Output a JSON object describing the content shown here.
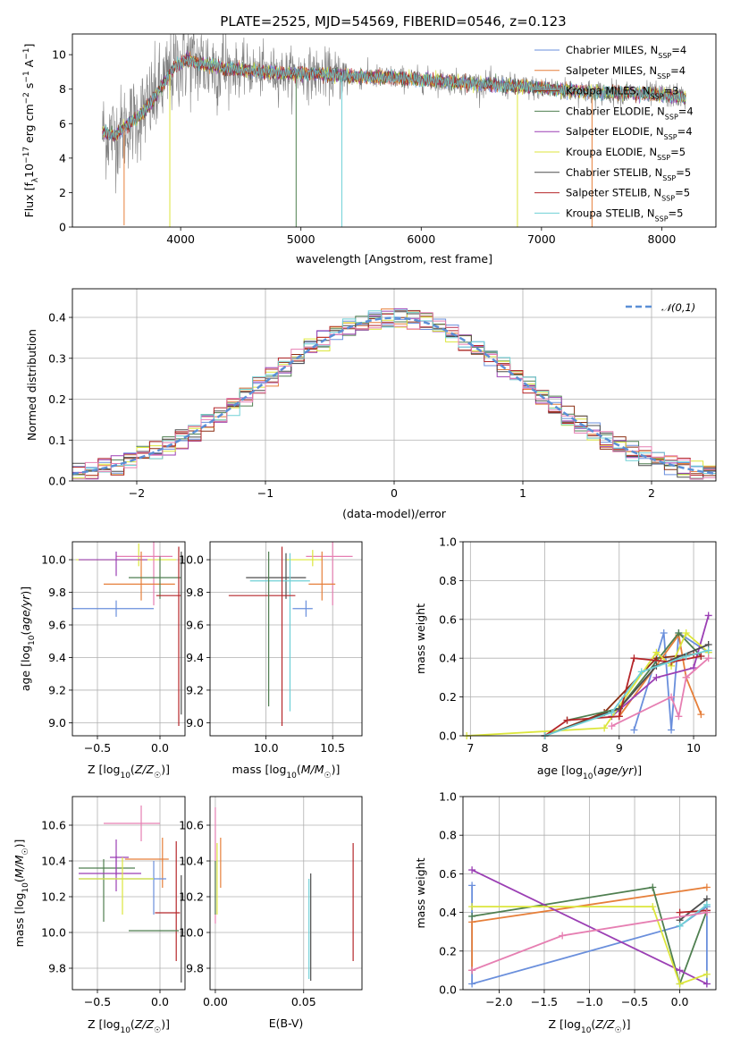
{
  "figure_title": "PLATE=2525, MJD=54569, FIBERID=0546, z=0.123",
  "colors": {
    "chabrier_miles": "#6a8fdc",
    "salpeter_miles": "#e67f3a",
    "kroupa_miles": "#8b2f12",
    "chabrier_elodie": "#4f7f50",
    "salpeter_elodie": "#9b3fb4",
    "kroupa_elodie": "#dce63c",
    "chabrier_stelib": "#4d4d4d",
    "salpeter_stelib": "#b5262a",
    "kroupa_stelib": "#6fd0d6",
    "pink": "#e67fb2",
    "normal_curve": "#5b8fd6",
    "grid": "#b0b0b0",
    "data": "#808080"
  },
  "chart_data": [
    {
      "panel": "spectrum",
      "type": "line",
      "title": "PLATE=2525, MJD=54569, FIBERID=0546, z=0.123",
      "xlabel": "wavelength [Angstrom, rest frame]",
      "ylabel": "Flux [f_λ 10^-17 erg cm^-2 s^-1 A^-1]",
      "xlim": [
        3100,
        8450
      ],
      "ylim": [
        0,
        11.2
      ],
      "xticks": [
        "4000",
        "5000",
        "6000",
        "7000",
        "8000"
      ],
      "yticks": [
        "0",
        "2",
        "4",
        "6",
        "8",
        "10"
      ],
      "legend_position": "top-right",
      "grid": false,
      "series": [
        {
          "name": "Chabrier MILES, N_SSP=4",
          "color_key": "chabrier_miles"
        },
        {
          "name": "Salpeter MILES, N_SSP=4",
          "color_key": "salpeter_miles"
        },
        {
          "name": "Kroupa MILES, N_SSP=3",
          "color_key": "kroupa_miles"
        },
        {
          "name": "Chabrier ELODIE, N_SSP=4",
          "color_key": "chabrier_elodie"
        },
        {
          "name": "Salpeter ELODIE, N_SSP=4",
          "color_key": "salpeter_elodie"
        },
        {
          "name": "Kroupa ELODIE, N_SSP=5",
          "color_key": "kroupa_elodie"
        },
        {
          "name": "Chabrier STELIB, N_SSP=5",
          "color_key": "chabrier_stelib"
        },
        {
          "name": "Salpeter STELIB, N_SSP=5",
          "color_key": "salpeter_stelib"
        },
        {
          "name": "Kroupa STELIB, N_SSP=5",
          "color_key": "kroupa_stelib"
        }
      ],
      "continuum": {
        "x": [
          3350,
          3450,
          3550,
          3650,
          3750,
          3850,
          3950,
          4050,
          4150,
          4300,
          4500,
          4700,
          4900,
          5100,
          5300,
          5500,
          5700,
          5900,
          6100,
          6300,
          6500,
          6700,
          6900,
          7100,
          7300,
          7500,
          7700,
          7900,
          8100,
          8200
        ],
        "y": [
          5.5,
          5.3,
          5.9,
          6.4,
          7.2,
          8.2,
          9.3,
          9.7,
          9.5,
          9.3,
          9.1,
          9.0,
          8.9,
          8.9,
          8.8,
          8.7,
          8.7,
          8.6,
          8.5,
          8.4,
          8.3,
          8.2,
          8.1,
          8.0,
          7.9,
          7.8,
          7.8,
          7.7,
          7.6,
          7.5
        ]
      },
      "model_dips": [
        {
          "x": 3530,
          "y": 0.1
        },
        {
          "x": 3910,
          "y": 0.0
        },
        {
          "x": 4960,
          "y": 0.0
        },
        {
          "x": 5340,
          "y": 0.0
        },
        {
          "x": 6800,
          "y": 0.0
        },
        {
          "x": 7420,
          "y": 0.0
        }
      ]
    },
    {
      "panel": "residuals",
      "type": "bar",
      "xlabel": "(data-model)/error",
      "ylabel": "Normed distribution",
      "xlim": [
        -2.5,
        2.5
      ],
      "ylim": [
        0,
        0.47
      ],
      "xticks": [
        "−2",
        "−1",
        "0",
        "1",
        "2"
      ],
      "yticks": [
        "0.0",
        "0.1",
        "0.2",
        "0.3",
        "0.4"
      ],
      "grid": true,
      "bin_width": 0.1,
      "legend": "𝒩(0,1)",
      "legend_position": "top-right",
      "normal_curve": {
        "mean": 0,
        "sigma": 1
      }
    },
    {
      "panel": "age_vs_Z",
      "type": "scatter",
      "xlabel": "Z [log10(Z/Z☉)]",
      "ylabel": "age [log10(age/yr)]",
      "xlim": [
        -0.7,
        0.2
      ],
      "ylim": [
        8.92,
        10.11
      ],
      "xticks": [
        "−0.5",
        "0.0"
      ],
      "yticks": [
        "9.0",
        "9.2",
        "9.4",
        "9.6",
        "9.8",
        "10.0"
      ],
      "grid": true,
      "points": [
        {
          "x": -0.17,
          "y": 10.0,
          "xerr": [
            0.5,
            0.3
          ],
          "yerr": [
            0.04,
            0.1
          ],
          "color_key": "kroupa_elodie"
        },
        {
          "x": -0.05,
          "y": 10.02,
          "xerr": [
            0.3,
            0.15
          ],
          "yerr": [
            0.3,
            0.1
          ],
          "color_key": "pink"
        },
        {
          "x": -0.35,
          "y": 9.7,
          "xerr": [
            0.35,
            0.3
          ],
          "yerr": [
            0.05,
            0.05
          ],
          "color_key": "chabrier_miles"
        },
        {
          "x": -0.35,
          "y": 10.0,
          "xerr": [
            0.3,
            0.25
          ],
          "yerr": [
            0.1,
            0.05
          ],
          "color_key": "salpeter_elodie"
        },
        {
          "x": -0.15,
          "y": 9.85,
          "xerr": [
            0.3,
            0.27
          ],
          "yerr": [
            0.1,
            0.2
          ],
          "color_key": "salpeter_miles"
        },
        {
          "x": 0.0,
          "y": 9.89,
          "xerr": [
            0.25,
            0.17
          ],
          "yerr": [
            0.13,
            0.13
          ],
          "color_key": "chabrier_elodie"
        },
        {
          "x": 0.15,
          "y": 9.78,
          "xerr": [
            0.18,
            0.02
          ],
          "yerr": [
            0.8,
            0.3
          ],
          "color_key": "salpeter_stelib"
        },
        {
          "x": 0.17,
          "y": 9.55,
          "xerr": [
            0.0,
            0.0
          ],
          "yerr": [
            0.5,
            0.5
          ],
          "color_key": "chabrier_stelib"
        }
      ]
    },
    {
      "panel": "age_vs_mass",
      "type": "scatter",
      "xlabel": "mass [log10(M/M☉)]",
      "ylabel": "",
      "xlim": [
        9.58,
        10.72
      ],
      "ylim": [
        8.92,
        10.11
      ],
      "xticks": [
        "10.0",
        "10.5"
      ],
      "yticks": [
        "9.0",
        "9.2",
        "9.4",
        "9.6",
        "9.8",
        "10.0"
      ],
      "grid": true,
      "points": [
        {
          "x": 10.5,
          "y": 10.02,
          "xerr": [
            0.2,
            0.15
          ],
          "yerr": [
            0.3,
            0.1
          ],
          "color_key": "pink"
        },
        {
          "x": 10.35,
          "y": 10.0,
          "xerr": [
            0.2,
            0.07
          ],
          "yerr": [
            0.04,
            0.06
          ],
          "color_key": "kroupa_elodie"
        },
        {
          "x": 10.15,
          "y": 9.89,
          "xerr": [
            0.3,
            0.15
          ],
          "yerr": [
            0.13,
            0.15
          ],
          "color_key": "chabrier_stelib"
        },
        {
          "x": 10.18,
          "y": 9.87,
          "xerr": [
            0.3,
            0.15
          ],
          "yerr": [
            0.8,
            0.17
          ],
          "color_key": "kroupa_stelib"
        },
        {
          "x": 10.42,
          "y": 9.85,
          "xerr": [
            0.1,
            0.1
          ],
          "yerr": [
            0.1,
            0.2
          ],
          "color_key": "salpeter_miles"
        },
        {
          "x": 10.12,
          "y": 9.78,
          "xerr": [
            0.4,
            0.1
          ],
          "yerr": [
            0.8,
            0.3
          ],
          "color_key": "salpeter_stelib"
        },
        {
          "x": 10.3,
          "y": 9.7,
          "xerr": [
            0.1,
            0.05
          ],
          "yerr": [
            0.05,
            0.05
          ],
          "color_key": "chabrier_miles"
        },
        {
          "x": 10.02,
          "y": 9.55,
          "xerr": [
            0.0,
            0.0
          ],
          "yerr": [
            0.45,
            0.5
          ],
          "color_key": "chabrier_elodie"
        }
      ]
    },
    {
      "panel": "weight_vs_age",
      "type": "line",
      "xlabel": "age [log10(age/yr)]",
      "ylabel": "mass weight",
      "xlim": [
        6.9,
        10.3
      ],
      "ylim": [
        0,
        1.0
      ],
      "xticks": [
        "7",
        "8",
        "9",
        "10"
      ],
      "yticks": [
        "0.0",
        "0.2",
        "0.4",
        "0.6",
        "0.8",
        "1.0"
      ],
      "grid": true,
      "series": [
        {
          "color_key": "chabrier_miles",
          "x": [
            9.2,
            9.6,
            9.7,
            9.8,
            10.2
          ],
          "y": [
            0.03,
            0.53,
            0.03,
            0.53,
            0.43
          ]
        },
        {
          "color_key": "salpeter_miles",
          "x": [
            9.0,
            9.8,
            9.9,
            10.1
          ],
          "y": [
            0.1,
            0.52,
            0.3,
            0.11
          ]
        },
        {
          "color_key": "kroupa_miles",
          "x": [
            8.0,
            8.8,
            9.5,
            10.0
          ],
          "y": [
            0.0,
            0.12,
            0.4,
            0.42
          ]
        },
        {
          "color_key": "chabrier_elodie",
          "x": [
            8.3,
            9.0,
            9.8,
            10.1
          ],
          "y": [
            0.08,
            0.14,
            0.53,
            0.41
          ]
        },
        {
          "color_key": "salpeter_elodie",
          "x": [
            8.9,
            9.5,
            10.0,
            10.2
          ],
          "y": [
            0.1,
            0.3,
            0.35,
            0.62
          ]
        },
        {
          "color_key": "kroupa_elodie",
          "x": [
            6.95,
            8.8,
            9.5,
            9.7,
            9.9,
            10.2
          ],
          "y": [
            0.0,
            0.04,
            0.43,
            0.36,
            0.53,
            0.43
          ]
        },
        {
          "color_key": "chabrier_stelib",
          "x": [
            8.0,
            9.0,
            9.5,
            10.2
          ],
          "y": [
            0.0,
            0.14,
            0.36,
            0.47
          ]
        },
        {
          "color_key": "salpeter_stelib",
          "x": [
            8.0,
            8.3,
            9.0,
            9.2,
            9.7,
            10.1
          ],
          "y": [
            0.0,
            0.08,
            0.1,
            0.4,
            0.38,
            0.41
          ]
        },
        {
          "color_key": "kroupa_stelib",
          "x": [
            8.0,
            8.9,
            9.3,
            9.9,
            10.2
          ],
          "y": [
            0.0,
            0.12,
            0.33,
            0.41,
            0.44
          ]
        },
        {
          "color_key": "pink",
          "x": [
            8.9,
            9.7,
            9.8,
            9.9,
            10.2
          ],
          "y": [
            0.05,
            0.2,
            0.1,
            0.3,
            0.4
          ]
        }
      ]
    },
    {
      "panel": "mass_vs_Z",
      "type": "scatter",
      "xlabel": "Z [log10(Z/Z☉)]",
      "ylabel": "mass [log10(M/M☉)]",
      "xlim": [
        -0.7,
        0.2
      ],
      "ylim": [
        9.68,
        10.76
      ],
      "xticks": [
        "−0.5",
        "0.0"
      ],
      "yticks": [
        "9.8",
        "10.0",
        "10.2",
        "10.4",
        "10.6"
      ],
      "grid": true,
      "points": [
        {
          "x": -0.15,
          "y": 10.61,
          "xerr": [
            0.3,
            0.15
          ],
          "yerr": [
            0.1,
            0.1
          ],
          "color_key": "pink"
        },
        {
          "x": -0.35,
          "y": 10.42,
          "xerr": [
            0.05,
            0.1
          ],
          "yerr": [
            0.1,
            0.1
          ],
          "color_key": "salpeter_elodie"
        },
        {
          "x": 0.02,
          "y": 10.41,
          "xerr": [
            0.3,
            0.05
          ],
          "yerr": [
            0.16,
            0.12
          ],
          "color_key": "salpeter_miles"
        },
        {
          "x": -0.45,
          "y": 10.36,
          "xerr": [
            0.2,
            0.25
          ],
          "yerr": [
            0.3,
            0.05
          ],
          "color_key": "chabrier_elodie"
        },
        {
          "x": -0.35,
          "y": 10.33,
          "xerr": [
            0.3,
            0.2
          ],
          "yerr": [
            0.1,
            0.1
          ],
          "color_key": "salpeter_elodie"
        },
        {
          "x": -0.05,
          "y": 10.3,
          "xerr": [
            0.6,
            0.1
          ],
          "yerr": [
            0.2,
            0.1
          ],
          "color_key": "chabrier_miles"
        },
        {
          "x": -0.3,
          "y": 10.3,
          "xerr": [
            0.35,
            0.25
          ],
          "yerr": [
            0.2,
            0.12
          ],
          "color_key": "kroupa_elodie"
        },
        {
          "x": 0.13,
          "y": 10.11,
          "xerr": [
            0.17,
            0.03
          ],
          "yerr": [
            0.27,
            0.4
          ],
          "color_key": "salpeter_stelib"
        },
        {
          "x": 0.0,
          "y": 10.01,
          "xerr": [
            0.25,
            0.15
          ],
          "yerr": [
            0.0,
            0.0
          ],
          "color_key": "chabrier_elodie"
        },
        {
          "x": 0.17,
          "y": 10.1,
          "xerr": [
            0.0,
            0.0
          ],
          "yerr": [
            0.38,
            0.22
          ],
          "color_key": "chabrier_stelib"
        }
      ]
    },
    {
      "panel": "mass_vs_EBV",
      "type": "scatter",
      "xlabel": "E(B-V)",
      "ylabel": "",
      "xlim": [
        -0.003,
        0.083
      ],
      "ylim": [
        9.68,
        10.76
      ],
      "xticks": [
        "0.00",
        "0.05"
      ],
      "yticks": [
        "9.8",
        "10.0",
        "10.2",
        "10.4",
        "10.6"
      ],
      "grid": true,
      "points": [
        {
          "x": 0.0,
          "y": 10.45,
          "xerr": [
            0,
            0
          ],
          "yerr": [
            0.4,
            0.25
          ],
          "color_key": "pink"
        },
        {
          "x": 0.003,
          "y": 10.36,
          "xerr": [
            0,
            0
          ],
          "yerr": [
            0.11,
            0.17
          ],
          "color_key": "salpeter_miles"
        },
        {
          "x": 0.001,
          "y": 10.3,
          "xerr": [
            0,
            0
          ],
          "yerr": [
            0.2,
            0.2
          ],
          "color_key": "kroupa_elodie"
        },
        {
          "x": 0.0,
          "y": 10.25,
          "xerr": [
            0,
            0
          ],
          "yerr": [
            0.15,
            0.15
          ],
          "color_key": "chabrier_elodie"
        },
        {
          "x": 0.054,
          "y": 10.03,
          "xerr": [
            0,
            0
          ],
          "yerr": [
            0.3,
            0.3
          ],
          "color_key": "chabrier_stelib"
        },
        {
          "x": 0.053,
          "y": 10.0,
          "xerr": [
            0,
            0
          ],
          "yerr": [
            0.26,
            0.3
          ],
          "color_key": "kroupa_stelib"
        },
        {
          "x": 0.078,
          "y": 10.17,
          "xerr": [
            0,
            0
          ],
          "yerr": [
            0.33,
            0.33
          ],
          "color_key": "salpeter_stelib"
        }
      ]
    },
    {
      "panel": "weight_vs_Z",
      "type": "line",
      "xlabel": "Z [log10(Z/Z☉)]",
      "ylabel": "mass weight",
      "xlim": [
        -2.4,
        0.4
      ],
      "ylim": [
        0,
        1.0
      ],
      "xticks": [
        "−2.0",
        "−1.5",
        "−1.0",
        "−0.5",
        "0.0"
      ],
      "yticks": [
        "0.0",
        "0.2",
        "0.4",
        "0.6",
        "0.8",
        "1.0"
      ],
      "grid": true,
      "series": [
        {
          "color_key": "chabrier_miles",
          "x": [
            -2.3,
            -2.3,
            0.0,
            0.3,
            0.3
          ],
          "y": [
            0.54,
            0.03,
            0.33,
            0.43,
            0.03
          ]
        },
        {
          "color_key": "salpeter_miles",
          "x": [
            -2.3,
            -2.3,
            0.3
          ],
          "y": [
            0.1,
            0.35,
            0.53
          ]
        },
        {
          "color_key": "chabrier_elodie",
          "x": [
            -2.3,
            -0.3,
            0.0,
            0.3
          ],
          "y": [
            0.38,
            0.53,
            0.03,
            0.41
          ]
        },
        {
          "color_key": "salpeter_elodie",
          "x": [
            -2.3,
            0.0,
            0.3
          ],
          "y": [
            0.62,
            0.1,
            0.03
          ]
        },
        {
          "color_key": "kroupa_elodie",
          "x": [
            -2.3,
            -0.3,
            0.0,
            0.3
          ],
          "y": [
            0.43,
            0.43,
            0.03,
            0.08
          ]
        },
        {
          "color_key": "chabrier_stelib",
          "x": [
            0.0,
            0.3
          ],
          "y": [
            0.36,
            0.47
          ]
        },
        {
          "color_key": "salpeter_stelib",
          "x": [
            0.0,
            0.3
          ],
          "y": [
            0.4,
            0.41
          ]
        },
        {
          "color_key": "kroupa_stelib",
          "x": [
            0.0,
            0.3
          ],
          "y": [
            0.33,
            0.44
          ]
        },
        {
          "color_key": "pink",
          "x": [
            -2.3,
            -1.3,
            0.3
          ],
          "y": [
            0.1,
            0.28,
            0.4
          ]
        }
      ]
    }
  ]
}
